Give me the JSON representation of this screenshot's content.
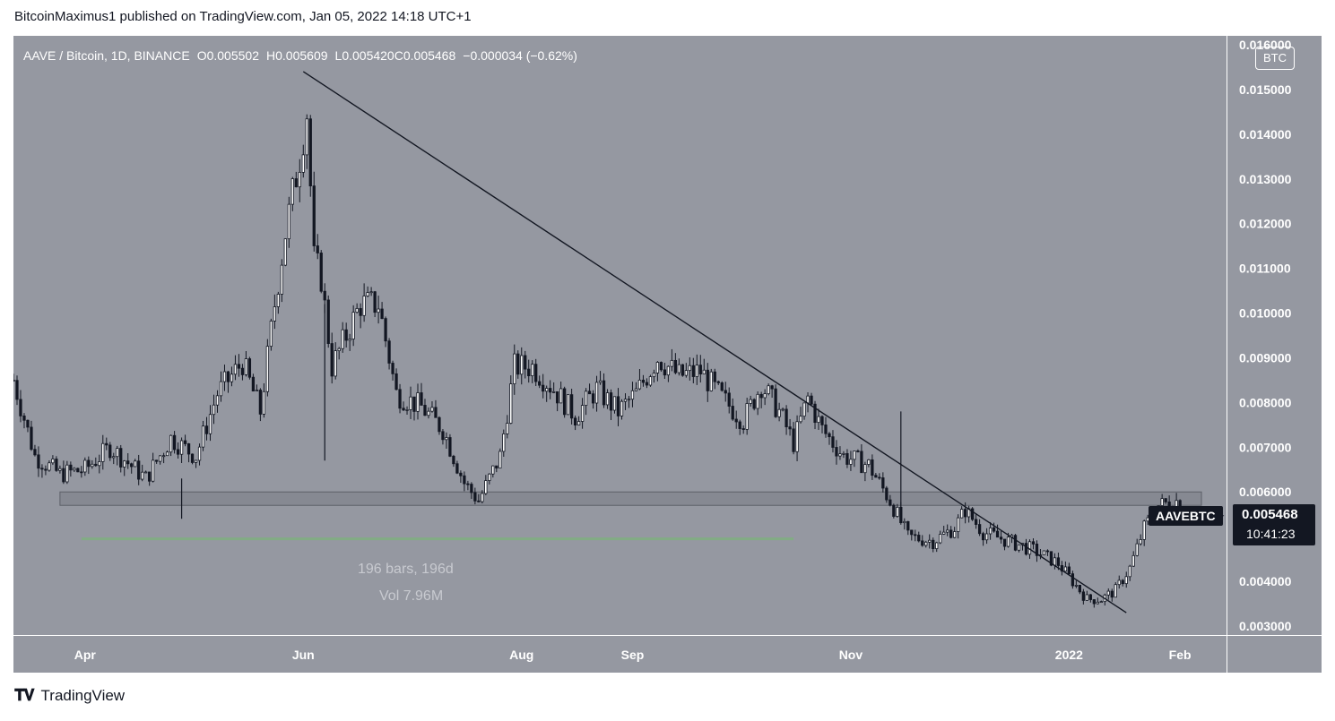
{
  "header": {
    "published_text": "BitcoinMaximus1 published on TradingView.com, Jan 05, 2022 14:18 UTC+1"
  },
  "legend": {
    "symbol": "AAVE / Bitcoin, 1D, BINANCE",
    "o_label": "O",
    "o_value": "0.005502",
    "h_label": "H",
    "h_value": "0.005609",
    "l_label": "L",
    "l_value": "0.005420",
    "c_label": "C",
    "c_value": "0.005468",
    "change": "−0.000034 (−0.62%)"
  },
  "currency_label": "BTC",
  "symbol_tag": "AAVEBTC",
  "price_tag": {
    "price": "0.005468",
    "countdown": "10:41:23"
  },
  "range_stats": {
    "bars": "196 bars, 196d",
    "vol": "Vol 7.96M"
  },
  "footer": {
    "brand": "TradingView",
    "logo_icon": "tradingview-logo-icon"
  },
  "colors": {
    "chart_bg": "#9598a1",
    "candle": "#ffffff",
    "candle_dark": "#131722",
    "support_zone": "#7a7d86",
    "range_line": "#7eb17e",
    "trendline": "#131722"
  },
  "chart_data": {
    "type": "candlestick",
    "title": "AAVE / Bitcoin, 1D, BINANCE",
    "x_tick_labels": [
      "Apr",
      "Jun",
      "Aug",
      "Sep",
      "Nov",
      "2022",
      "Feb"
    ],
    "y_tick_labels": [
      "0.003000",
      "0.004000",
      "0.005000",
      "0.006000",
      "0.007000",
      "0.008000",
      "0.009000",
      "0.010000",
      "0.011000",
      "0.012000",
      "0.013000",
      "0.014000",
      "0.015000",
      "0.016000"
    ],
    "ylim": [
      0.0028,
      0.0162
    ],
    "xlim": [
      "2021-03-12",
      "2022-02-14"
    ],
    "grid": false,
    "close_path": [
      [
        "2021-03-12",
        0.0085
      ],
      [
        "2021-03-18",
        0.0068
      ],
      [
        "2021-03-25",
        0.0064
      ],
      [
        "2021-04-01",
        0.0065
      ],
      [
        "2021-04-08",
        0.007
      ],
      [
        "2021-04-18",
        0.0063
      ],
      [
        "2021-04-25",
        0.0072
      ],
      [
        "2021-05-02",
        0.0068
      ],
      [
        "2021-05-08",
        0.0082
      ],
      [
        "2021-05-15",
        0.0089
      ],
      [
        "2021-05-20",
        0.0078
      ],
      [
        "2021-05-24",
        0.0102
      ],
      [
        "2021-05-27",
        0.0118
      ],
      [
        "2021-05-31",
        0.0135
      ],
      [
        "2021-06-02",
        0.0145
      ],
      [
        "2021-06-04",
        0.0112
      ],
      [
        "2021-06-06",
        0.0108
      ],
      [
        "2021-06-09",
        0.0088
      ],
      [
        "2021-06-13",
        0.0095
      ],
      [
        "2021-06-17",
        0.0102
      ],
      [
        "2021-06-22",
        0.0102
      ],
      [
        "2021-06-27",
        0.0082
      ],
      [
        "2021-07-04",
        0.0079
      ],
      [
        "2021-07-10",
        0.0074
      ],
      [
        "2021-07-16",
        0.0062
      ],
      [
        "2021-07-20",
        0.0058
      ],
      [
        "2021-07-26",
        0.0068
      ],
      [
        "2021-07-30",
        0.0088
      ],
      [
        "2021-08-04",
        0.0088
      ],
      [
        "2021-08-10",
        0.0083
      ],
      [
        "2021-08-16",
        0.0077
      ],
      [
        "2021-08-22",
        0.0083
      ],
      [
        "2021-08-28",
        0.0078
      ],
      [
        "2021-09-02",
        0.0082
      ],
      [
        "2021-09-08",
        0.009
      ],
      [
        "2021-09-14",
        0.0086
      ],
      [
        "2021-09-20",
        0.0087
      ],
      [
        "2021-09-26",
        0.0081
      ],
      [
        "2021-10-02",
        0.0076
      ],
      [
        "2021-10-07",
        0.0084
      ],
      [
        "2021-10-12",
        0.0078
      ],
      [
        "2021-10-16",
        0.0071
      ],
      [
        "2021-10-20",
        0.0081
      ],
      [
        "2021-10-24",
        0.0074
      ],
      [
        "2021-10-30",
        0.0068
      ],
      [
        "2021-11-06",
        0.0066
      ],
      [
        "2021-11-12",
        0.0058
      ],
      [
        "2021-11-17",
        0.005
      ],
      [
        "2021-11-24",
        0.0049
      ],
      [
        "2021-11-30",
        0.0052
      ],
      [
        "2021-12-03",
        0.0056
      ],
      [
        "2021-12-08",
        0.0051
      ],
      [
        "2021-12-15",
        0.0049
      ],
      [
        "2021-12-22",
        0.0047
      ],
      [
        "2021-12-29",
        0.0044
      ],
      [
        "2022-01-02",
        0.004
      ],
      [
        "2022-01-06",
        0.0036
      ],
      [
        "2022-01-10",
        0.0036
      ],
      [
        "2022-01-14",
        0.0038
      ],
      [
        "2022-01-18",
        0.0043
      ],
      [
        "2022-01-22",
        0.0052
      ],
      [
        "2022-01-26",
        0.0057
      ],
      [
        "2022-01-31",
        0.0058
      ],
      [
        "2022-02-03",
        0.0055
      ]
    ],
    "annotations": {
      "descending_resistance": {
        "start": [
          "2021-06-01",
          0.0154
        ],
        "end": [
          "2022-01-17",
          0.0033
        ]
      },
      "horizontal_support_zone": {
        "x_range": [
          "2021-03-25",
          "2022-02-07"
        ],
        "y_range": [
          0.0057,
          0.006
        ]
      },
      "date_range_measure": {
        "x_range": [
          "2021-03-31",
          "2021-10-16"
        ],
        "level": 0.00495
      },
      "spike_wicks": [
        [
          "2021-04-28",
          0.0063,
          0.0054
        ],
        [
          "2021-06-07",
          0.0102,
          0.0067
        ],
        [
          "2021-11-15",
          0.0078,
          0.0055
        ]
      ]
    },
    "last_price": 0.005468
  }
}
